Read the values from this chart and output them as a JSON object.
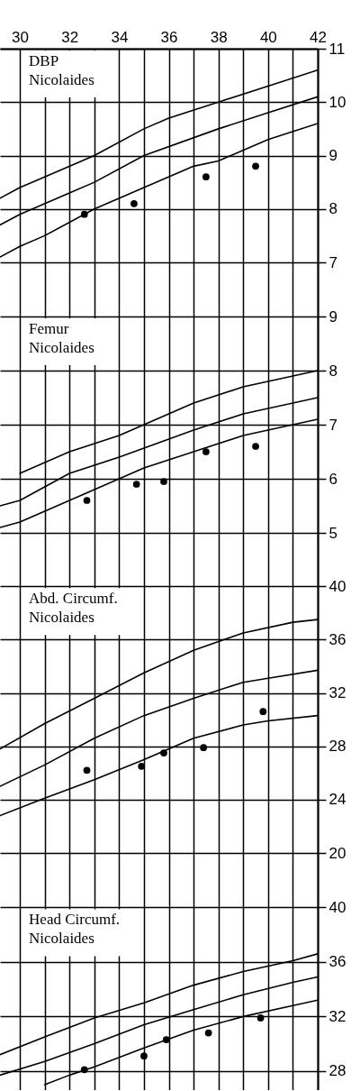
{
  "chart_data": [
    {
      "type": "line",
      "title": "DBP",
      "subtitle": "Nicolaides",
      "xlim": [
        29.2,
        42
      ],
      "xticks": [
        30,
        {
          "value": 31,
          "label": null
        },
        32,
        {
          "value": 33,
          "label": null
        },
        34,
        {
          "value": 35,
          "label": null
        },
        36,
        {
          "value": 37,
          "label": null
        },
        38,
        {
          "value": 39,
          "label": null
        },
        40,
        {
          "value": 41,
          "label": null
        },
        42
      ],
      "ylim": [
        7,
        11
      ],
      "yticks": [
        7,
        8,
        9,
        10,
        11
      ],
      "grid": true,
      "series": [
        {
          "color": "#000000",
          "x": [
            29.2,
            30,
            31,
            33,
            35,
            36,
            38,
            40,
            42
          ],
          "values": [
            8.2,
            8.4,
            8.6,
            9.0,
            9.5,
            9.7,
            10.0,
            10.3,
            10.6
          ]
        },
        {
          "color": "#000000",
          "x": [
            29.2,
            30,
            32,
            33,
            35,
            38,
            40,
            42
          ],
          "values": [
            7.7,
            7.9,
            8.3,
            8.5,
            9.0,
            9.5,
            9.8,
            10.1
          ]
        },
        {
          "color": "#000000",
          "x": [
            29.2,
            30,
            31,
            33,
            35,
            37,
            38,
            40,
            42
          ],
          "values": [
            7.1,
            7.3,
            7.5,
            8.0,
            8.4,
            8.8,
            8.9,
            9.3,
            9.6
          ]
        },
        {
          "type": "scatter",
          "marker": "circle",
          "color": "#000000",
          "x": [
            32.6,
            34.6,
            37.5,
            39.5
          ],
          "values": [
            7.9,
            8.1,
            8.6,
            8.8
          ]
        }
      ]
    },
    {
      "type": "line",
      "title": "Femur",
      "subtitle": "Nicolaides",
      "xlim": [
        29.2,
        42
      ],
      "xticks": [
        30,
        {
          "value": 31,
          "label": null
        },
        32,
        {
          "value": 33,
          "label": null
        },
        34,
        {
          "value": 35,
          "label": null
        },
        36,
        {
          "value": 37,
          "label": null
        },
        38,
        {
          "value": 39,
          "label": null
        },
        40,
        {
          "value": 41,
          "label": null
        },
        42
      ],
      "ylim": [
        5,
        10
      ],
      "yticks": [
        5,
        6,
        7,
        8,
        9
      ],
      "grid": true,
      "tick_labels": "y",
      "series": [
        {
          "color": "#000000",
          "x": [
            30,
            32,
            34,
            35,
            37,
            39,
            41,
            42
          ],
          "values": [
            6.1,
            6.5,
            6.8,
            7.0,
            7.4,
            7.7,
            7.9,
            8.0
          ]
        },
        {
          "color": "#000000",
          "x": [
            29.2,
            30,
            32,
            34,
            37,
            39,
            42
          ],
          "values": [
            5.5,
            5.6,
            6.1,
            6.4,
            6.9,
            7.2,
            7.5
          ]
        },
        {
          "color": "#000000",
          "x": [
            29.2,
            30,
            31,
            33,
            34,
            35,
            37,
            39,
            41,
            42
          ],
          "values": [
            5.1,
            5.2,
            5.4,
            5.8,
            6.0,
            6.2,
            6.5,
            6.8,
            7.0,
            7.1
          ]
        },
        {
          "type": "scatter",
          "marker": "circle",
          "color": "#000000",
          "x": [
            32.7,
            34.7,
            35.8,
            37.5,
            39.5
          ],
          "values": [
            5.6,
            5.9,
            5.95,
            6.5,
            6.6
          ]
        }
      ]
    },
    {
      "type": "line",
      "title": "Abd. Circumf.",
      "subtitle": "Nicolaides",
      "xlim": [
        29.2,
        42
      ],
      "xticks": [
        30,
        {
          "value": 31,
          "label": null
        },
        32,
        {
          "value": 33,
          "label": null
        },
        34,
        {
          "value": 35,
          "label": null
        },
        36,
        {
          "value": 37,
          "label": null
        },
        38,
        {
          "value": 39,
          "label": null
        },
        40,
        {
          "value": 41,
          "label": null
        },
        42
      ],
      "ylim": [
        20,
        44
      ],
      "yticks": [
        20,
        24,
        28,
        32,
        36,
        40
      ],
      "grid": true,
      "tick_labels": "y",
      "series": [
        {
          "color": "#000000",
          "x": [
            29.2,
            31,
            33,
            35,
            37,
            39,
            41,
            42
          ],
          "values": [
            27.8,
            29.7,
            31.6,
            33.5,
            35.2,
            36.5,
            37.3,
            37.5
          ]
        },
        {
          "color": "#000000",
          "x": [
            29.2,
            31,
            33,
            35,
            37,
            39,
            40,
            42
          ],
          "values": [
            25.0,
            26.6,
            28.6,
            30.3,
            31.6,
            32.8,
            33.1,
            33.7
          ]
        },
        {
          "color": "#000000",
          "x": [
            29.2,
            31,
            33,
            35,
            37,
            39,
            40,
            42
          ],
          "values": [
            22.8,
            24.1,
            25.5,
            27.0,
            28.6,
            29.6,
            29.9,
            30.3
          ]
        },
        {
          "type": "scatter",
          "marker": "circle",
          "color": "#000000",
          "x": [
            32.7,
            34.9,
            35.8,
            37.4,
            39.8
          ],
          "values": [
            26.2,
            26.5,
            27.5,
            27.9,
            30.6
          ]
        }
      ]
    },
    {
      "type": "line",
      "title": "Head Circumf.",
      "subtitle": "Nicolaides",
      "xlim": [
        29.2,
        42
      ],
      "xticks": [
        30,
        {
          "value": 31,
          "label": null
        },
        32,
        {
          "value": 33,
          "label": null
        },
        34,
        {
          "value": 35,
          "label": null
        },
        36,
        {
          "value": 37,
          "label": null
        },
        38,
        {
          "value": 39,
          "label": null
        },
        40,
        {
          "value": 41,
          "label": null
        },
        42
      ],
      "ylim": [
        26.6,
        44
      ],
      "yticks": [
        28,
        32,
        36,
        40
      ],
      "grid": true,
      "tick_labels": "y",
      "series": [
        {
          "color": "#000000",
          "x": [
            29.2,
            31,
            33,
            35,
            37,
            39,
            41,
            42
          ],
          "values": [
            29.2,
            30.5,
            31.9,
            33.0,
            34.3,
            35.3,
            36.1,
            36.6
          ]
        },
        {
          "color": "#000000",
          "x": [
            29.2,
            31,
            33,
            35,
            37,
            39,
            41,
            42
          ],
          "values": [
            27.7,
            28.7,
            30.0,
            31.4,
            32.5,
            33.6,
            34.5,
            34.9
          ]
        },
        {
          "color": "#000000",
          "x": [
            31,
            32,
            33,
            35,
            37,
            39,
            41,
            42
          ],
          "values": [
            27.0,
            27.7,
            28.3,
            29.7,
            31.0,
            32.0,
            32.8,
            33.2
          ]
        },
        {
          "type": "scatter",
          "marker": "circle",
          "color": "#000000",
          "x": [
            32.6,
            35.0,
            35.9,
            37.6,
            39.7
          ],
          "values": [
            28.1,
            29.1,
            30.3,
            30.8,
            31.9
          ]
        }
      ]
    }
  ]
}
